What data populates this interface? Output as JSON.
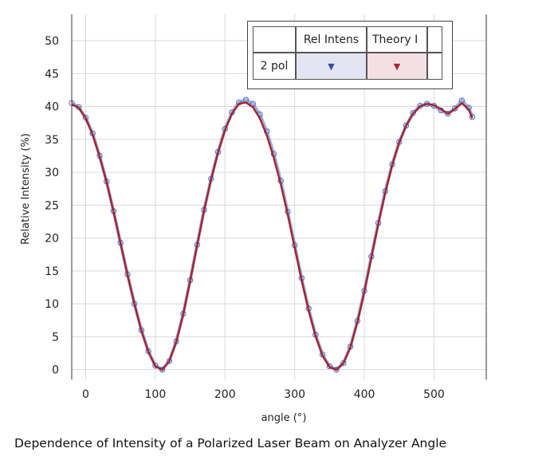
{
  "caption": "Dependence of Intensity of a Polarized Laser Beam on Analyzer Angle",
  "legend": {
    "columns": [
      "Rel Intens",
      "Theory I"
    ],
    "row_label": "2 pol",
    "arrow": "▼",
    "arrow_colors": [
      "#2d4fa8",
      "#b0242c"
    ],
    "cell_colors": [
      "#e4e4f2",
      "#f2e0e4"
    ]
  },
  "chart_data": {
    "type": "line",
    "title": "",
    "xlabel": "angle (°)",
    "ylabel": "Relative Intensity (%)",
    "xlim": [
      -20,
      575
    ],
    "ylim": [
      -1.5,
      54
    ],
    "xticks": [
      0,
      100,
      200,
      300,
      400,
      500
    ],
    "yticks": [
      0,
      5,
      10,
      15,
      20,
      25,
      30,
      35,
      40,
      45,
      50
    ],
    "grid": true,
    "legend_position": "top-right",
    "series": [
      {
        "name": "Rel Intens",
        "style": "markers",
        "color": "#4a6cc4",
        "x": [
          -20,
          -10,
          0,
          10,
          20,
          30,
          40,
          50,
          60,
          70,
          80,
          90,
          100,
          110,
          120,
          130,
          140,
          150,
          160,
          170,
          180,
          190,
          200,
          210,
          220,
          230,
          240,
          250,
          260,
          270,
          280,
          290,
          300,
          310,
          320,
          330,
          340,
          350,
          360,
          370,
          380,
          390,
          400,
          410,
          420,
          430,
          440,
          450,
          460,
          470,
          480,
          490,
          500,
          510,
          520,
          530,
          540,
          550,
          555
        ],
        "y": [
          40.5,
          39.9,
          38.3,
          35.9,
          32.5,
          28.6,
          24.1,
          19.3,
          14.5,
          10.0,
          6.0,
          2.8,
          0.6,
          0.0,
          1.3,
          4.3,
          8.5,
          13.6,
          19.0,
          24.3,
          29.0,
          33.1,
          36.6,
          39.1,
          40.6,
          41.0,
          40.4,
          38.8,
          36.2,
          32.8,
          28.7,
          24.0,
          18.9,
          13.9,
          9.3,
          5.3,
          2.3,
          0.5,
          0.0,
          1.0,
          3.5,
          7.4,
          12.0,
          17.2,
          22.3,
          27.1,
          31.2,
          34.6,
          37.1,
          39.0,
          40.1,
          40.4,
          40.1,
          39.4,
          38.9,
          39.7,
          40.9,
          39.8,
          38.4
        ]
      },
      {
        "name": "Theory I",
        "style": "line",
        "color": "#a8222a",
        "x": [
          -20,
          -10,
          0,
          10,
          20,
          30,
          40,
          50,
          60,
          70,
          80,
          90,
          100,
          110,
          120,
          130,
          140,
          150,
          160,
          170,
          180,
          190,
          200,
          210,
          220,
          230,
          240,
          250,
          260,
          270,
          280,
          290,
          300,
          310,
          320,
          330,
          340,
          350,
          360,
          370,
          380,
          390,
          400,
          410,
          420,
          430,
          440,
          450,
          460,
          470,
          480,
          490,
          500,
          510,
          520,
          530,
          540,
          550,
          555
        ],
        "y": [
          40.3,
          39.8,
          38.2,
          35.7,
          32.4,
          28.5,
          24.0,
          19.2,
          14.4,
          10.0,
          5.9,
          2.7,
          0.5,
          0.0,
          1.3,
          4.2,
          8.4,
          13.5,
          18.9,
          24.2,
          28.9,
          33.0,
          36.4,
          38.9,
          40.4,
          40.6,
          39.9,
          38.2,
          35.6,
          32.2,
          28.2,
          23.6,
          18.6,
          13.6,
          9.0,
          5.1,
          2.1,
          0.4,
          0.0,
          1.0,
          3.4,
          7.2,
          11.8,
          17.0,
          22.1,
          26.9,
          31.1,
          34.5,
          37.1,
          38.9,
          40.0,
          40.4,
          40.2,
          39.6,
          38.9,
          39.6,
          40.5,
          39.5,
          38.2
        ]
      }
    ]
  }
}
